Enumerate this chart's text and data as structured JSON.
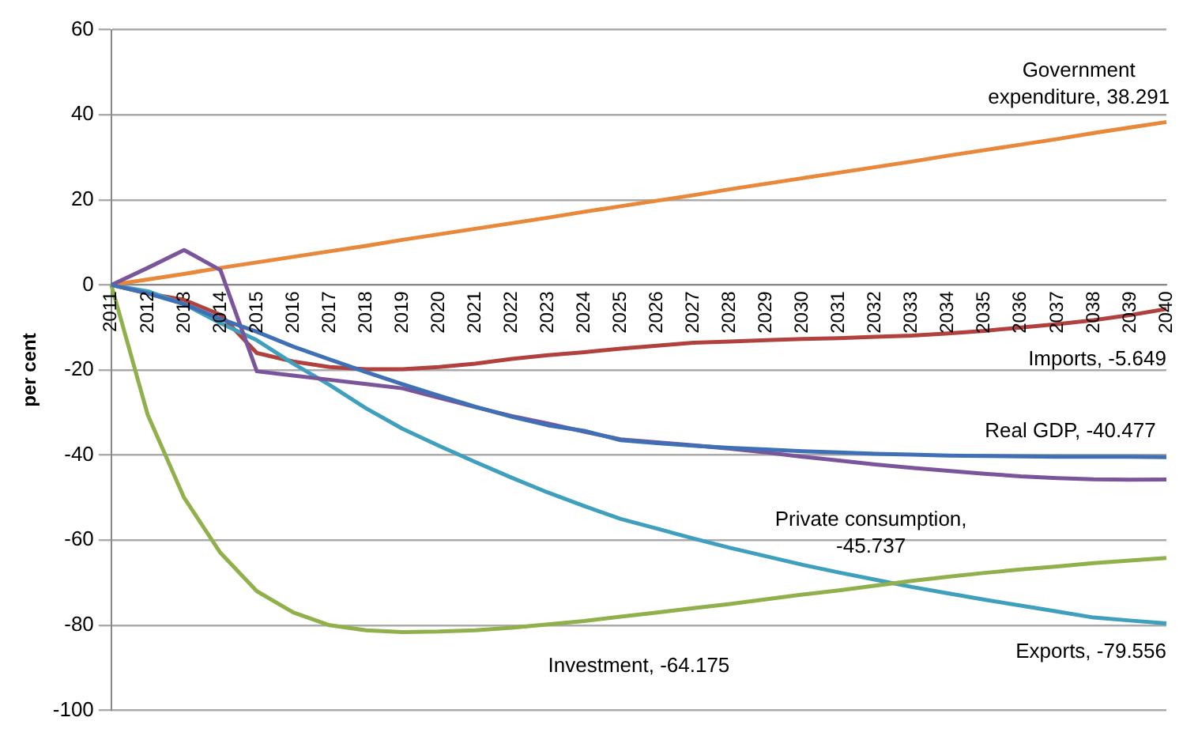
{
  "chart_data": {
    "type": "line",
    "ylabel": "per cent",
    "categories": [
      "2011",
      "2012",
      "2013",
      "2014",
      "2015",
      "2016",
      "2017",
      "2018",
      "2019",
      "2020",
      "2021",
      "2022",
      "2023",
      "2024",
      "2025",
      "2026",
      "2027",
      "2028",
      "2029",
      "2030",
      "2031",
      "2032",
      "2033",
      "2034",
      "2035",
      "2036",
      "2037",
      "2038",
      "2039",
      "2040"
    ],
    "series": [
      {
        "color": "#3f6fb5",
        "values": [
          0,
          -2,
          -4.5,
          -8,
          -11,
          -14.5,
          -17.5,
          -20.5,
          -23.3,
          -26,
          -28.6,
          -31,
          -33,
          -34.3,
          -36.5,
          -37.2,
          -37.8,
          -38.3,
          -38.7,
          -39.1,
          -39.4,
          -39.7,
          -39.9,
          -40.1,
          -40.2,
          -40.3,
          -40.4,
          -40.4,
          -40.4,
          -40.477
        ]
      },
      {
        "color": "#7b559a",
        "values": [
          0,
          4,
          8.2,
          3.5,
          -20.3,
          -21.3,
          -22.3,
          -23.3,
          -24.3,
          -26.5,
          -28.7,
          -30.8,
          -32.6,
          -34.5,
          -36.3,
          -37,
          -37.7,
          -38.5,
          -39.4,
          -40.4,
          -41.3,
          -42.2,
          -43,
          -43.7,
          -44.4,
          -45,
          -45.4,
          -45.7,
          -45.8,
          -45.737
        ]
      },
      {
        "color": "#8fb04a",
        "values": [
          0,
          -30.5,
          -50,
          -63,
          -72,
          -77,
          -80,
          -81.2,
          -81.6,
          -81.5,
          -81.2,
          -80.6,
          -79.8,
          -79,
          -78,
          -77,
          -76,
          -75,
          -73.9,
          -72.8,
          -71.8,
          -70.7,
          -69.6,
          -68.6,
          -67.7,
          -66.9,
          -66.2,
          -65.4,
          -64.8,
          -64.175
        ]
      },
      {
        "color": "#e8883a",
        "values": [
          0,
          1.3,
          2.6,
          4,
          5.3,
          6.6,
          7.9,
          9.2,
          10.6,
          11.9,
          13.2,
          14.5,
          15.8,
          17.2,
          18.5,
          19.8,
          21.1,
          22.5,
          23.8,
          25.1,
          26.4,
          27.7,
          29,
          30.4,
          31.7,
          33,
          34.3,
          35.7,
          37,
          38.291
        ]
      },
      {
        "color": "#3fa0bd",
        "values": [
          0,
          -1.5,
          -4.5,
          -9,
          -13,
          -18.5,
          -23.5,
          -29,
          -33.8,
          -37.8,
          -41.6,
          -45.3,
          -48.8,
          -52,
          -55,
          -57.3,
          -59.6,
          -61.8,
          -63.8,
          -65.8,
          -67.6,
          -69.3,
          -71,
          -72.5,
          -74,
          -75.4,
          -76.8,
          -78.2,
          -78.9,
          -79.556
        ]
      },
      {
        "color": "#b0413e",
        "values": [
          0,
          -2,
          -3.5,
          -7,
          -16,
          -18,
          -19.3,
          -19.8,
          -19.8,
          -19.3,
          -18.5,
          -17.4,
          -16.5,
          -15.8,
          -15,
          -14.3,
          -13.6,
          -13.3,
          -13,
          -12.7,
          -12.5,
          -12.2,
          -11.9,
          -11.4,
          -10.8,
          -10,
          -9.2,
          -8.3,
          -7.1,
          -5.649
        ]
      }
    ],
    "annotations": [
      "Real GDP, -40.477",
      "Private consumption, -45.737",
      "Investment, -64.175",
      "Government expenditure, 38.291",
      "Exports, -79.556",
      "Imports, -5.649"
    ],
    "ylim": [
      -100,
      60
    ],
    "yticks": [
      -100,
      -80,
      -60,
      -40,
      -20,
      0,
      20,
      40,
      60
    ],
    "grid": "y",
    "legend": false,
    "marker": "none",
    "line_style": "solid"
  }
}
